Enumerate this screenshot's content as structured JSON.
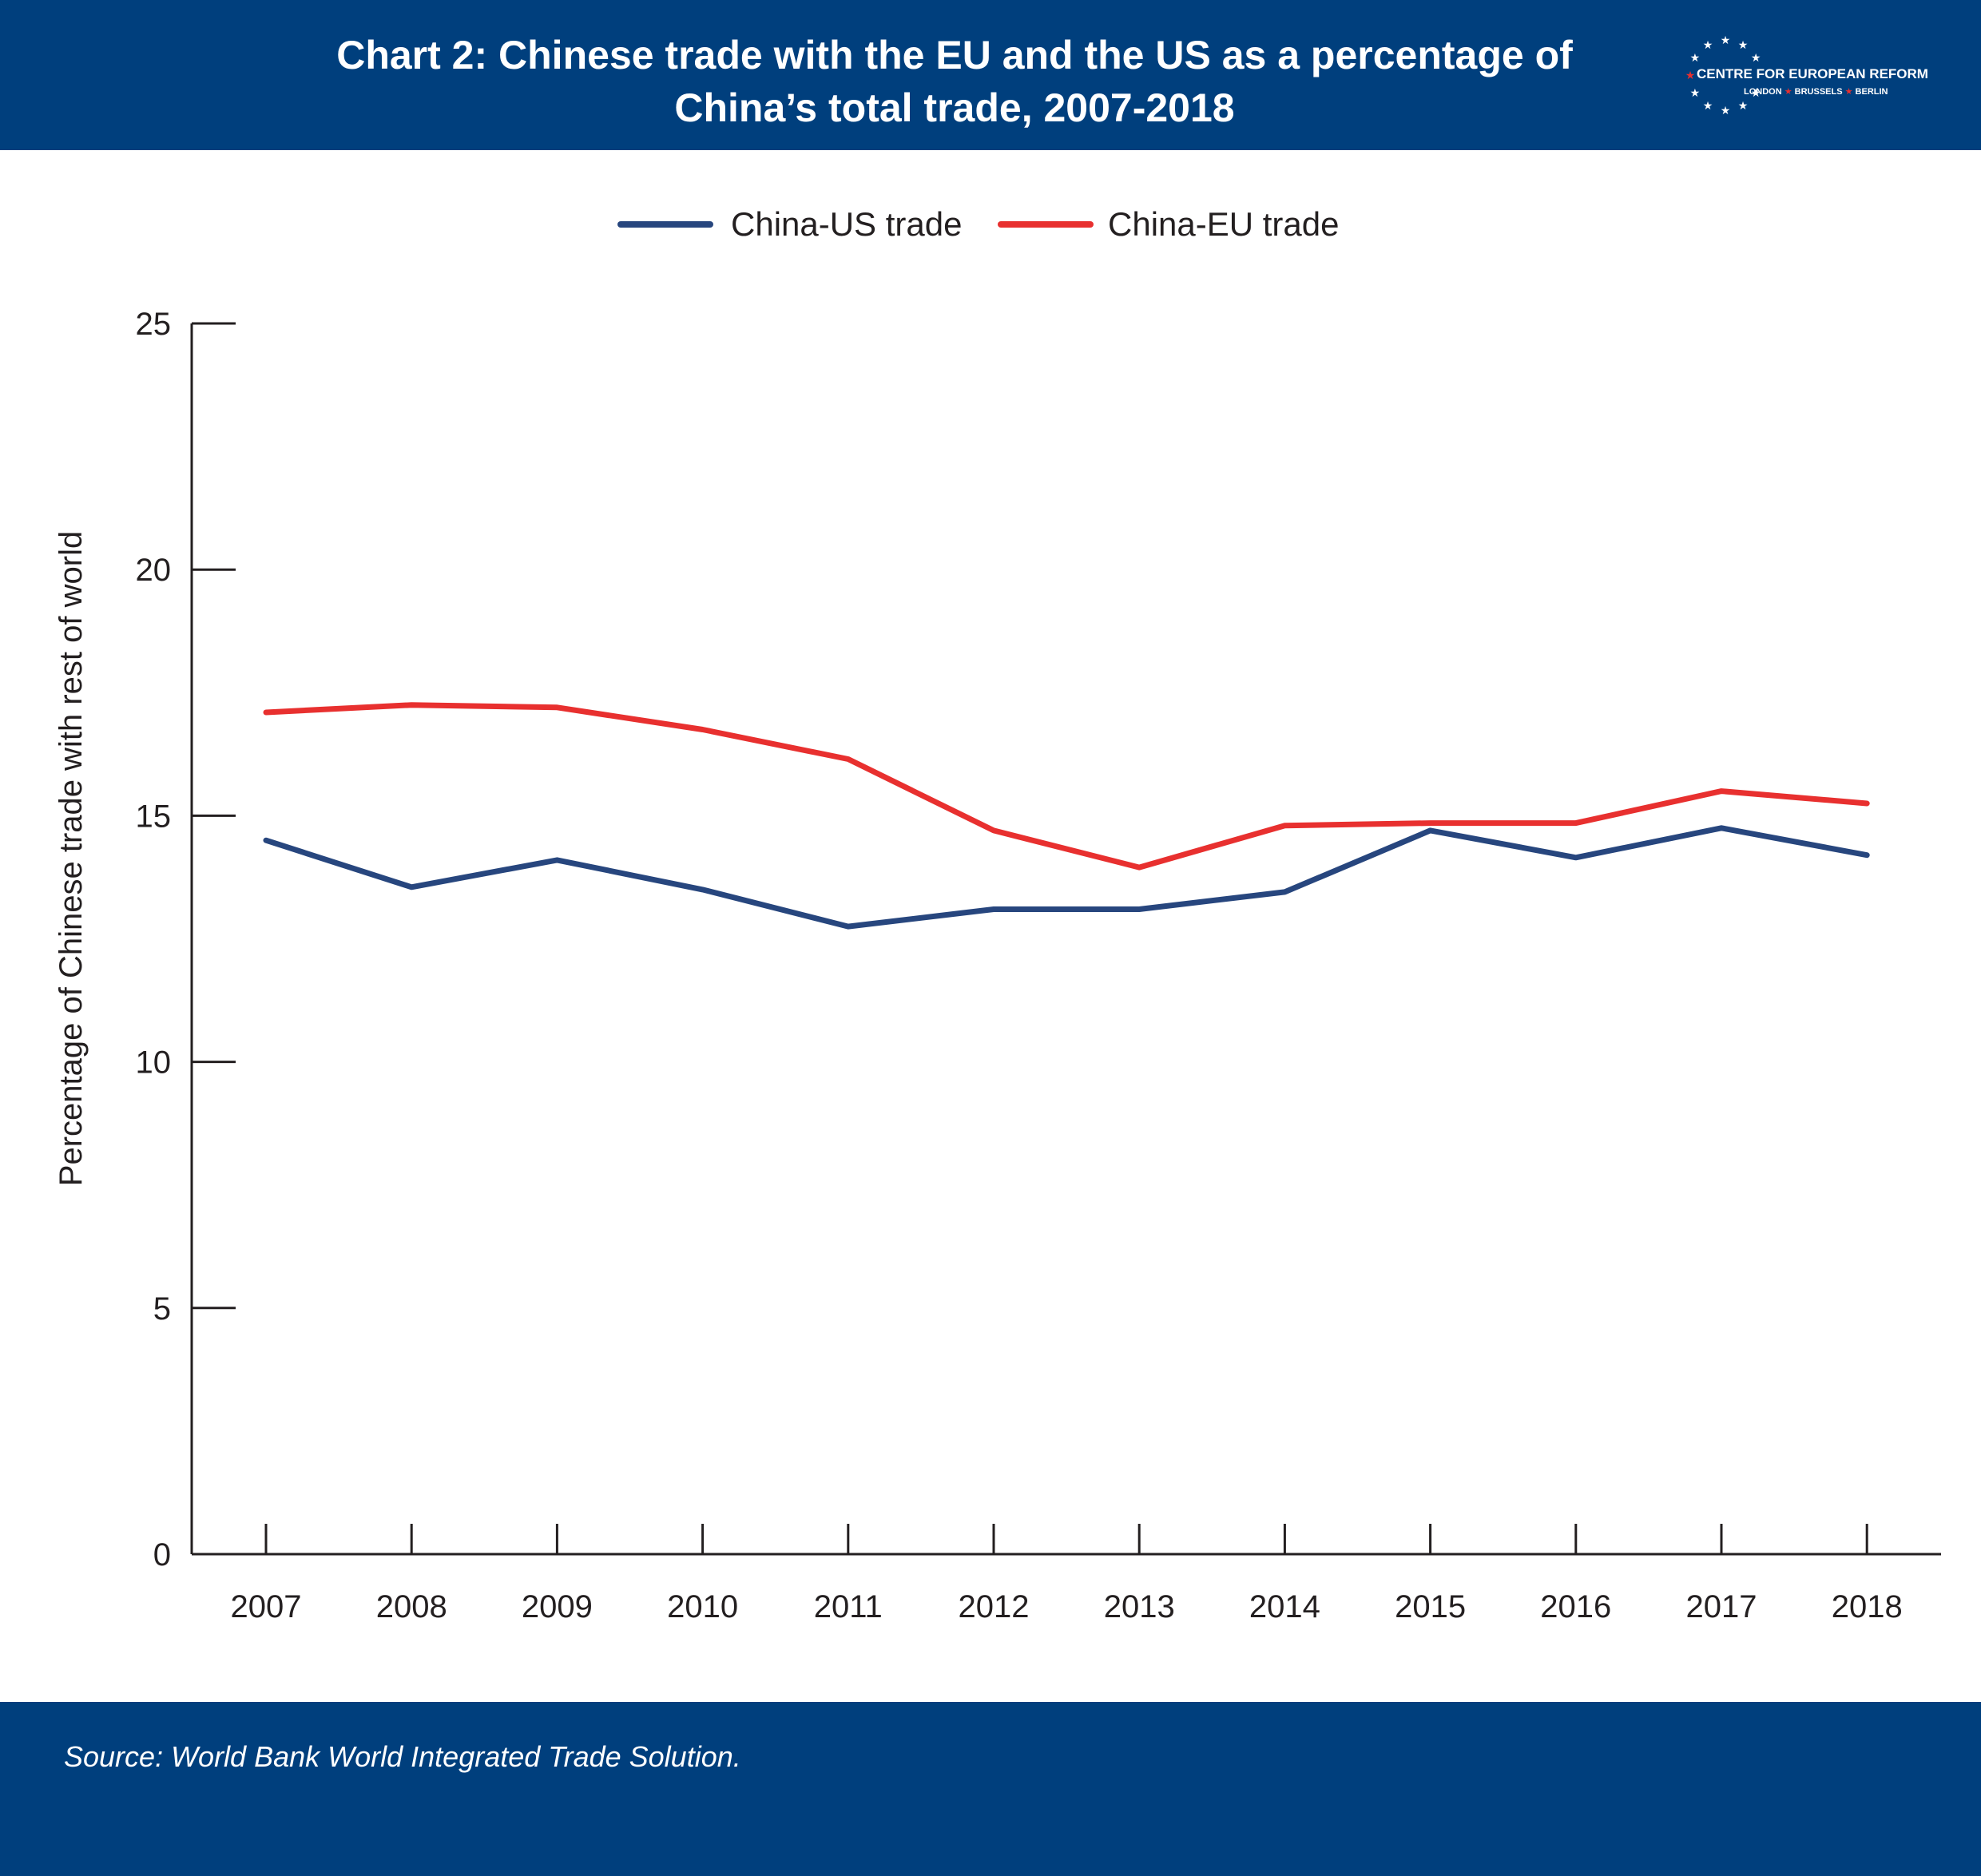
{
  "header": {
    "title_line1": "Chart 2: Chinese trade with the EU and the US as a percentage of",
    "title_line2": "China’s total trade, 2007-2018",
    "logo_text": "CENTRE FOR EUROPEAN REFORM",
    "logo_cities": [
      "LONDON",
      "BRUSSELS",
      "BERLIN"
    ],
    "logo_icon": "eu-star-circle-icon"
  },
  "footer": {
    "source": "Source: World Bank World Integrated Trade Solution."
  },
  "colors": {
    "brand_blue": "#003f7d",
    "us_series": "#27467e",
    "eu_series": "#e8302f",
    "star_red": "#e8302f"
  },
  "chart_data": {
    "type": "line",
    "x": [
      "2007",
      "2008",
      "2009",
      "2010",
      "2011",
      "2012",
      "2013",
      "2014",
      "2015",
      "2016",
      "2017",
      "2018"
    ],
    "series": [
      {
        "name": "China-US trade",
        "color": "#27467e",
        "values": [
          14.5,
          13.55,
          14.1,
          13.5,
          12.75,
          13.1,
          13.1,
          13.45,
          14.7,
          14.15,
          14.75,
          14.2
        ]
      },
      {
        "name": "China-EU trade",
        "color": "#e8302f",
        "values": [
          17.1,
          17.25,
          17.2,
          16.75,
          16.15,
          14.7,
          13.95,
          14.8,
          14.85,
          14.85,
          15.5,
          15.25
        ]
      }
    ],
    "xlabel": "",
    "ylabel": "Percentage of Chinese trade with rest of world",
    "ylim": [
      0,
      25
    ],
    "yticks": [
      0,
      5,
      10,
      15,
      20,
      25
    ],
    "grid": false,
    "legend_position": "top-center"
  }
}
